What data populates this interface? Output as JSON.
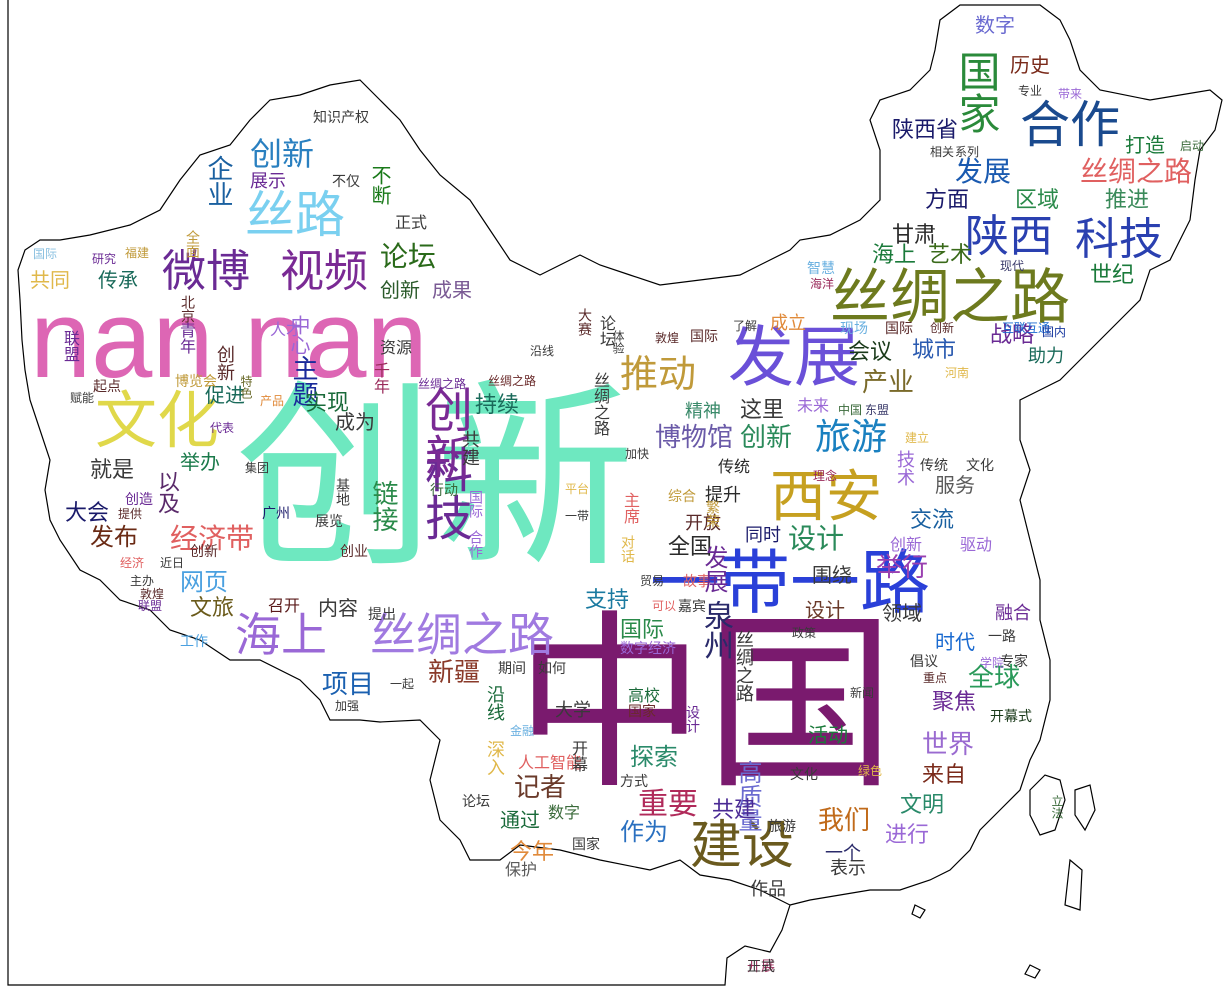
{
  "colors": {
    "background": "#ffffff",
    "outline": "#000000"
  },
  "words": [
    {
      "t": "创新",
      "c": "#6ee8c0"
    },
    {
      "t": "中国",
      "c": "#7a1a6e"
    },
    {
      "t": "nan nan",
      "c": "#dd66b4"
    },
    {
      "t": "一带一路",
      "c": "#2a40d8"
    },
    {
      "t": "丝绸之路",
      "c": "#6d7a1e"
    },
    {
      "t": "发展",
      "c": "#6a50d8"
    },
    {
      "t": "文化",
      "c": "#e0d84a"
    },
    {
      "t": "丝绸之路",
      "c": "#a07ae0"
    },
    {
      "t": "海上",
      "c": "#9a68d6"
    },
    {
      "t": "科技",
      "c": "#6a2a94"
    },
    {
      "t": "创新",
      "c": "#7a2a94"
    },
    {
      "t": "西安",
      "c": "#c6a020"
    },
    {
      "t": "建设",
      "c": "#6a5a1e"
    },
    {
      "t": "微博",
      "c": "#6a2a94"
    },
    {
      "t": "视频",
      "c": "#7a2a94"
    },
    {
      "t": "丝路",
      "c": "#7ad0f0"
    },
    {
      "t": "陕西",
      "c": "#2a40b0"
    },
    {
      "t": "科技",
      "c": "#2a40b0"
    },
    {
      "t": "合作",
      "c": "#1a4a8e"
    },
    {
      "t": "国家",
      "c": "#2a8a3a"
    },
    {
      "t": "推动",
      "c": "#c09a3a"
    },
    {
      "t": "旅游",
      "c": "#1a80c0"
    },
    {
      "t": "创新",
      "c": "#2a80c0"
    },
    {
      "t": "发展",
      "c": "#1a5ab0"
    },
    {
      "t": "丝绸之路",
      "c": "#e06060"
    },
    {
      "t": "经济带",
      "c": "#e06060"
    },
    {
      "t": "链接",
      "c": "#2a8a4a"
    },
    {
      "t": "博物馆",
      "c": "#6a5aa8"
    },
    {
      "t": "创新",
      "c": "#2a8a5a"
    },
    {
      "t": "设计",
      "c": "#2a8a5a"
    },
    {
      "t": "举行",
      "c": "#9a40b0"
    },
    {
      "t": "重要",
      "c": "#b02a5a"
    },
    {
      "t": "世界",
      "c": "#9a6ad0"
    },
    {
      "t": "全球",
      "c": "#2a9a5a"
    },
    {
      "t": "项目",
      "c": "#1a60b0"
    },
    {
      "t": "新疆",
      "c": "#8a3a2a"
    },
    {
      "t": "发布",
      "c": "#6a2a14"
    },
    {
      "t": "网页",
      "c": "#4aa0e0"
    },
    {
      "t": "企业",
      "c": "#1a60a0"
    },
    {
      "t": "论坛",
      "c": "#2a6a1a"
    },
    {
      "t": "主题",
      "c": "#1a2a9a"
    },
    {
      "t": "产业",
      "c": "#7a6a2a"
    },
    {
      "t": "城市",
      "c": "#2a5ab0"
    },
    {
      "t": "交流",
      "c": "#1a60a0"
    },
    {
      "t": "服务",
      "c": "#5a5a5a"
    },
    {
      "t": "记者",
      "c": "#6a3a2a"
    },
    {
      "t": "我们",
      "c": "#c06a1a"
    },
    {
      "t": "作为",
      "c": "#2a70c0"
    },
    {
      "t": "探索",
      "c": "#2a8a6a"
    },
    {
      "t": "泉州",
      "c": "#2a2a6a"
    },
    {
      "t": "高质量",
      "c": "#6a6ad0"
    },
    {
      "t": "数字",
      "c": "#6a6ad0"
    },
    {
      "t": "历史",
      "c": "#7a2a1a"
    },
    {
      "t": "来自",
      "c": "#7a2a1a"
    },
    {
      "t": "文明",
      "c": "#2a8a6a"
    },
    {
      "t": "聚焦",
      "c": "#6a2a94"
    },
    {
      "t": "活动",
      "c": "#1a7a3a"
    },
    {
      "t": "支持",
      "c": "#1a7aa0"
    },
    {
      "t": "国际",
      "c": "#2a8a4a"
    },
    {
      "t": "共建",
      "c": "#4a2a94"
    },
    {
      "t": "进行",
      "c": "#9a68d6"
    },
    {
      "t": "今年",
      "c": "#e08a3a"
    },
    {
      "t": "通过",
      "c": "#1a6a3a"
    },
    {
      "t": "共同",
      "c": "#e0b84a"
    },
    {
      "t": "传承",
      "c": "#1a6a5a"
    },
    {
      "t": "创新",
      "c": "#2a5a2a"
    },
    {
      "t": "成果",
      "c": "#7a5a94"
    },
    {
      "t": "不断",
      "c": "#1a7a1a"
    },
    {
      "t": "展示",
      "c": "#6a2a94"
    },
    {
      "t": "陕西省",
      "c": "#1a1a6a"
    },
    {
      "t": "打造",
      "c": "#1a7a3a"
    },
    {
      "t": "方面",
      "c": "#1a1a6a"
    },
    {
      "t": "区域",
      "c": "#2a8a4a"
    },
    {
      "t": "推进",
      "c": "#3a8a5a"
    },
    {
      "t": "甘肃",
      "c": "#2a2a2a"
    },
    {
      "t": "艺术",
      "c": "#3a6a1a"
    },
    {
      "t": "海上",
      "c": "#1a7a3a"
    },
    {
      "t": "世纪",
      "c": "#1a7a3a"
    },
    {
      "t": "成立",
      "c": "#e08a3a"
    },
    {
      "t": "会议",
      "c": "#1a3a1a"
    },
    {
      "t": "战略",
      "c": "#6a2a94"
    },
    {
      "t": "助力",
      "c": "#1a6a5a"
    },
    {
      "t": "持续",
      "c": "#1a6a5a"
    },
    {
      "t": "实现",
      "c": "#1a6a3a"
    },
    {
      "t": "成为",
      "c": "#3a3a3a"
    },
    {
      "t": "就是",
      "c": "#3a3a3a"
    },
    {
      "t": "举办",
      "c": "#1a7a4a"
    },
    {
      "t": "以及",
      "c": "#5a2a6a"
    },
    {
      "t": "大会",
      "c": "#1a1a6a"
    },
    {
      "t": "促进",
      "c": "#1a6a5a"
    },
    {
      "t": "文旅",
      "c": "#6a5a1a"
    },
    {
      "t": "召开",
      "c": "#5a1a1a"
    },
    {
      "t": "内容",
      "c": "#3a3a3a"
    },
    {
      "t": "设计",
      "c": "#6a3a2a"
    },
    {
      "t": "领域",
      "c": "#3a3a3a"
    },
    {
      "t": "围绕",
      "c": "#3a3a3a"
    },
    {
      "t": "融合",
      "c": "#6a2a94"
    },
    {
      "t": "时代",
      "c": "#1a6ad0"
    },
    {
      "t": "这里",
      "c": "#3a3a3a"
    },
    {
      "t": "未来",
      "c": "#9a68d6"
    },
    {
      "t": "精神",
      "c": "#3a8a6a"
    },
    {
      "t": "传统",
      "c": "#2a2a2a"
    },
    {
      "t": "提升",
      "c": "#2a2a2a"
    },
    {
      "t": "开放",
      "c": "#5a2a2a"
    },
    {
      "t": "同时",
      "c": "#1a1a6a"
    },
    {
      "t": "全国",
      "c": "#2a2a2a"
    },
    {
      "t": "中心",
      "c": "#9a68d6"
    },
    {
      "t": "一个",
      "c": "#2a2a6a"
    },
    {
      "t": "表示",
      "c": "#3a3a3a"
    },
    {
      "t": "作品",
      "c": "#3a3a3a"
    },
    {
      "t": "保护",
      "c": "#5a5a5a"
    },
    {
      "t": "开展",
      "c": "#9a2a5a"
    },
    {
      "t": "正式",
      "c": "#3a3a3a"
    },
    {
      "t": "不仅",
      "c": "#3a3a3a"
    },
    {
      "t": "知识产权",
      "c": "#3a3a3a"
    },
    {
      "t": "国际",
      "c": "#8ac0e0"
    },
    {
      "t": "研究",
      "c": "#6a2a94"
    },
    {
      "t": "福建",
      "c": "#c09a3a"
    },
    {
      "t": "全面",
      "c": "#c09a3a"
    },
    {
      "t": "北京",
      "c": "#5a2a2a"
    },
    {
      "t": "联盟",
      "c": "#6a2a94"
    },
    {
      "t": "博览会",
      "c": "#c09a3a"
    },
    {
      "t": "起点",
      "c": "#5a2a2a"
    },
    {
      "t": "丝绸之路",
      "c": "#6a2a94"
    },
    {
      "t": "丝绸之路",
      "c": "#6a2a2a"
    },
    {
      "t": "沿线",
      "c": "#3a3a3a"
    },
    {
      "t": "体验",
      "c": "#3a3a3a"
    },
    {
      "t": "敦煌",
      "c": "#5a2a2a"
    },
    {
      "t": "国际",
      "c": "#5a2a2a"
    },
    {
      "t": "了解",
      "c": "#3a3a3a"
    },
    {
      "t": "现场",
      "c": "#6ab0e0"
    },
    {
      "t": "国际",
      "c": "#5a2a2a"
    },
    {
      "t": "创新",
      "c": "#5a2a2a"
    },
    {
      "t": "互联互通",
      "c": "#1a6ad0"
    },
    {
      "t": "国内",
      "c": "#1a3aa0"
    },
    {
      "t": "智慧",
      "c": "#6ab0e0"
    },
    {
      "t": "海洋",
      "c": "#9a2a5a"
    },
    {
      "t": "现代",
      "c": "#3a3a6a"
    },
    {
      "t": "专业",
      "c": "#3a3a3a"
    },
    {
      "t": "带来",
      "c": "#9a68d6"
    },
    {
      "t": "相关",
      "c": "#3a3a3a"
    },
    {
      "t": "系列",
      "c": "#3a3a3a"
    },
    {
      "t": "启动",
      "c": "#3a6a3a"
    },
    {
      "t": "河南",
      "c": "#e0b84a"
    },
    {
      "t": "中国",
      "c": "#3a6a3a"
    },
    {
      "t": "东盟",
      "c": "#3a3a6a"
    },
    {
      "t": "建立",
      "c": "#e0b84a"
    },
    {
      "t": "传统",
      "c": "#3a3a3a"
    },
    {
      "t": "文化",
      "c": "#3a3a3a"
    },
    {
      "t": "理念",
      "c": "#9a2a5a"
    },
    {
      "t": "技术",
      "c": "#9a68d6"
    },
    {
      "t": "创新",
      "c": "#9a68d6"
    },
    {
      "t": "驱动",
      "c": "#9a68d6"
    },
    {
      "t": "综合",
      "c": "#c09a3a"
    },
    {
      "t": "繁荣",
      "c": "#c09a3a"
    },
    {
      "t": "加快",
      "c": "#3a3a3a"
    },
    {
      "t": "资源",
      "c": "#3a3a3a"
    },
    {
      "t": "千年",
      "c": "#9a2a5a"
    },
    {
      "t": "人才",
      "c": "#9a68d6"
    },
    {
      "t": "特色",
      "c": "#6a6a2a"
    },
    {
      "t": "产品",
      "c": "#e08a3a"
    },
    {
      "t": "创新",
      "c": "#5a2a2a"
    },
    {
      "t": "青年",
      "c": "#6a2a94"
    },
    {
      "t": "赋能",
      "c": "#3a3a3a"
    },
    {
      "t": "代表",
      "c": "#6a2a94"
    },
    {
      "t": "创造",
      "c": "#6a2a94"
    },
    {
      "t": "提供",
      "c": "#5a2a2a"
    },
    {
      "t": "创新",
      "c": "#5a2a2a"
    },
    {
      "t": "创业",
      "c": "#5a2a2a"
    },
    {
      "t": "经济",
      "c": "#e06060"
    },
    {
      "t": "近日",
      "c": "#3a3a3a"
    },
    {
      "t": "主办",
      "c": "#3a3a3a"
    },
    {
      "t": "敦煌",
      "c": "#5a2a2a"
    },
    {
      "t": "联盟",
      "c": "#6a2a94"
    },
    {
      "t": "工作",
      "c": "#4aa0e0"
    },
    {
      "t": "集团",
      "c": "#3a3a3a"
    },
    {
      "t": "行动",
      "c": "#3a6a3a"
    },
    {
      "t": "广州",
      "c": "#1a1a6a"
    },
    {
      "t": "展览",
      "c": "#3a3a3a"
    },
    {
      "t": "基地",
      "c": "#3a3a3a"
    },
    {
      "t": "提出",
      "c": "#3a3a3a"
    },
    {
      "t": "平台",
      "c": "#e0b84a"
    },
    {
      "t": "一带",
      "c": "#3a3a3a"
    },
    {
      "t": "共建",
      "c": "#3a3a3a"
    },
    {
      "t": "国际",
      "c": "#9a68d6"
    },
    {
      "t": "合作",
      "c": "#9a68d6"
    },
    {
      "t": "对话",
      "c": "#e0b84a"
    },
    {
      "t": "主席",
      "c": "#e06060"
    },
    {
      "t": "贸易",
      "c": "#3a3a3a"
    },
    {
      "t": "故事",
      "c": "#e06060"
    },
    {
      "t": "可以",
      "c": "#e06060"
    },
    {
      "t": "嘉宾",
      "c": "#3a3a3a"
    },
    {
      "t": "政策",
      "c": "#3a3a3a"
    },
    {
      "t": "一路",
      "c": "#3a3a3a"
    },
    {
      "t": "倡议",
      "c": "#3a3a3a"
    },
    {
      "t": "学院",
      "c": "#9a68d6"
    },
    {
      "t": "专家",
      "c": "#3a3a3a"
    },
    {
      "t": "重点",
      "c": "#5a2a2a"
    },
    {
      "t": "新闻",
      "c": "#3a3a3a"
    },
    {
      "t": "开幕式",
      "c": "#1a3a1a"
    },
    {
      "t": "绿色",
      "c": "#e0b84a"
    },
    {
      "t": "文化",
      "c": "#3a3a3a"
    },
    {
      "t": "旅游",
      "c": "#3a3a3a"
    },
    {
      "t": "数字",
      "c": "#9a68d6"
    },
    {
      "t": "经济",
      "c": "#9a68d6"
    },
    {
      "t": "期间",
      "c": "#3a3a3a"
    },
    {
      "t": "如何",
      "c": "#3a3a3a"
    },
    {
      "t": "一起",
      "c": "#3a3a3a"
    },
    {
      "t": "加强",
      "c": "#3a3a3a"
    },
    {
      "t": "高校",
      "c": "#1a6a3a"
    },
    {
      "t": "国家",
      "c": "#6a2a2a"
    },
    {
      "t": "大学",
      "c": "#3a3a3a"
    },
    {
      "t": "沿线",
      "c": "#1a6a3a"
    },
    {
      "t": "金融",
      "c": "#6ab0e0"
    },
    {
      "t": "深入",
      "c": "#e0b84a"
    },
    {
      "t": "人工智能",
      "c": "#e06060"
    },
    {
      "t": "开幕",
      "c": "#3a3a3a"
    },
    {
      "t": "方式",
      "c": "#3a3a3a"
    },
    {
      "t": "数字",
      "c": "#3a6a3a"
    },
    {
      "t": "论坛",
      "c": "#3a3a3a"
    },
    {
      "t": "国家",
      "c": "#3a3a3a"
    },
    {
      "t": "设计",
      "c": "#6a2a94"
    },
    {
      "t": "丝绸之路",
      "c": "#3a3a3a"
    },
    {
      "t": "大赛",
      "c": "#5a2a2a"
    },
    {
      "t": "论坛",
      "c": "#3a3a3a"
    },
    {
      "t": "发展",
      "c": "#6a2a94"
    },
    {
      "t": "丝绸之路",
      "c": "#3a3a3a"
    },
    {
      "t": "正式",
      "c": "#3a3a3a"
    },
    {
      "t": "立法",
      "c": "#3a6a3a"
    }
  ]
}
